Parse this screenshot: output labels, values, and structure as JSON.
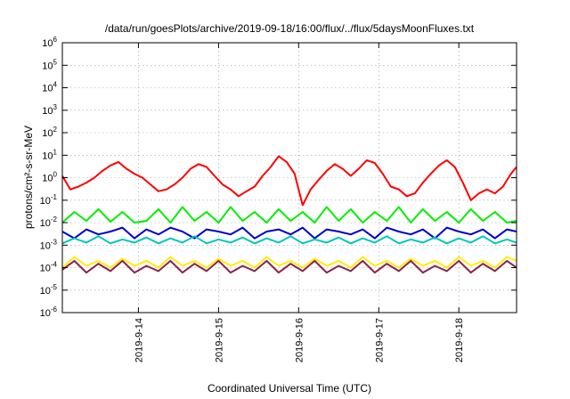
{
  "chart_data": {
    "type": "line",
    "title": "/data/run/goesPlots/archive/2019-09-18/16:00/flux/../flux/5daysMoonFluxes.txt",
    "xlabel": "Coordinated Universal Time (UTC)",
    "ylabel": "protons/cm²-s-sr-MeV",
    "y_scale": "log",
    "ylim": [
      1e-06,
      1000000.0
    ],
    "xlim": [
      13.05,
      18.72
    ],
    "x_unit": "day of September 2019",
    "x_ticks": [
      {
        "value": 14,
        "label": "2019-9-14"
      },
      {
        "value": 15,
        "label": "2019-9-15"
      },
      {
        "value": 16,
        "label": "2019-9-16"
      },
      {
        "value": 17,
        "label": "2019-9-17"
      },
      {
        "value": 18,
        "label": "2019-9-18"
      }
    ],
    "y_ticks": [
      {
        "value": 1e-06,
        "base": "10",
        "exp": "-6"
      },
      {
        "value": 1e-05,
        "base": "10",
        "exp": "-5"
      },
      {
        "value": 0.0001,
        "base": "10",
        "exp": "-4"
      },
      {
        "value": 0.001,
        "base": "10",
        "exp": "-3"
      },
      {
        "value": 0.01,
        "base": "10",
        "exp": "-2"
      },
      {
        "value": 0.1,
        "base": "10",
        "exp": "-1"
      },
      {
        "value": 1,
        "base": "10",
        "exp": "0"
      },
      {
        "value": 10,
        "base": "10",
        "exp": "1"
      },
      {
        "value": 100,
        "base": "10",
        "exp": "2"
      },
      {
        "value": 1000,
        "base": "10",
        "exp": "3"
      },
      {
        "value": 10000,
        "base": "10",
        "exp": "4"
      },
      {
        "value": 100000,
        "base": "10",
        "exp": "5"
      },
      {
        "value": 1000000,
        "base": "10",
        "exp": "6"
      }
    ],
    "grid": true,
    "legend": "none",
    "series": [
      {
        "color": "#ff0000",
        "x": [
          13.05,
          13.15,
          13.25,
          13.35,
          13.45,
          13.55,
          13.65,
          13.75,
          13.85,
          13.95,
          14.05,
          14.15,
          14.25,
          14.35,
          14.45,
          14.55,
          14.65,
          14.75,
          14.85,
          14.95,
          15.05,
          15.15,
          15.25,
          15.35,
          15.45,
          15.55,
          15.65,
          15.75,
          15.85,
          15.95,
          16.05,
          16.15,
          16.25,
          16.35,
          16.45,
          16.55,
          16.65,
          16.75,
          16.85,
          16.95,
          17.05,
          17.15,
          17.25,
          17.35,
          17.45,
          17.55,
          17.65,
          17.75,
          17.85,
          17.95,
          18.05,
          18.15,
          18.25,
          18.35,
          18.45,
          18.55,
          18.65,
          18.72
        ],
        "y": [
          1.2,
          0.3,
          0.4,
          0.6,
          1.0,
          2.0,
          3.5,
          5.0,
          2.5,
          1.5,
          1.0,
          0.5,
          0.25,
          0.3,
          0.5,
          1.0,
          2.5,
          4.0,
          3.0,
          1.2,
          0.5,
          0.3,
          0.15,
          0.25,
          0.4,
          1.2,
          3.0,
          9.0,
          5.0,
          1.5,
          0.06,
          0.3,
          0.8,
          2.0,
          4.0,
          2.5,
          1.2,
          2.5,
          6.0,
          4.5,
          1.5,
          0.4,
          0.3,
          0.15,
          0.2,
          0.6,
          1.5,
          3.5,
          6.0,
          3.0,
          0.6,
          0.1,
          0.2,
          0.3,
          0.2,
          0.4,
          1.5,
          3.0
        ]
      },
      {
        "color": "#00ee00",
        "x": [
          13.05,
          13.2,
          13.35,
          13.5,
          13.65,
          13.8,
          13.95,
          14.1,
          14.25,
          14.4,
          14.55,
          14.7,
          14.85,
          15.0,
          15.15,
          15.3,
          15.45,
          15.6,
          15.75,
          15.9,
          16.05,
          16.2,
          16.35,
          16.5,
          16.65,
          16.8,
          16.95,
          17.1,
          17.25,
          17.4,
          17.55,
          17.7,
          17.85,
          18.0,
          18.15,
          18.3,
          18.45,
          18.6,
          18.72
        ],
        "y": [
          0.01,
          0.03,
          0.012,
          0.04,
          0.011,
          0.03,
          0.01,
          0.012,
          0.04,
          0.01,
          0.05,
          0.012,
          0.03,
          0.01,
          0.05,
          0.012,
          0.03,
          0.01,
          0.04,
          0.012,
          0.03,
          0.01,
          0.05,
          0.012,
          0.04,
          0.01,
          0.03,
          0.012,
          0.05,
          0.01,
          0.04,
          0.012,
          0.03,
          0.01,
          0.04,
          0.012,
          0.03,
          0.01,
          0.012
        ]
      },
      {
        "color": "#0000cc",
        "x": [
          13.05,
          13.2,
          13.35,
          13.5,
          13.65,
          13.8,
          13.95,
          14.1,
          14.25,
          14.4,
          14.55,
          14.7,
          14.85,
          15.0,
          15.15,
          15.3,
          15.45,
          15.6,
          15.75,
          15.9,
          16.05,
          16.2,
          16.35,
          16.5,
          16.65,
          16.8,
          16.95,
          17.1,
          17.25,
          17.4,
          17.55,
          17.7,
          17.85,
          18.0,
          18.15,
          18.3,
          18.45,
          18.6,
          18.72
        ],
        "y": [
          0.004,
          0.002,
          0.005,
          0.003,
          0.004,
          0.006,
          0.002,
          0.005,
          0.003,
          0.006,
          0.004,
          0.002,
          0.005,
          0.004,
          0.003,
          0.006,
          0.002,
          0.004,
          0.005,
          0.003,
          0.006,
          0.002,
          0.005,
          0.004,
          0.003,
          0.005,
          0.002,
          0.006,
          0.004,
          0.003,
          0.005,
          0.002,
          0.006,
          0.004,
          0.003,
          0.005,
          0.002,
          0.005,
          0.004
        ]
      },
      {
        "color": "#00c8b4",
        "x": [
          13.05,
          13.2,
          13.35,
          13.5,
          13.65,
          13.8,
          13.95,
          14.1,
          14.25,
          14.4,
          14.55,
          14.7,
          14.85,
          15.0,
          15.15,
          15.3,
          15.45,
          15.6,
          15.75,
          15.9,
          16.05,
          16.2,
          16.35,
          16.5,
          16.65,
          16.8,
          16.95,
          17.1,
          17.25,
          17.4,
          17.55,
          17.7,
          17.85,
          18.0,
          18.15,
          18.3,
          18.45,
          18.6,
          18.72
        ],
        "y": [
          0.0012,
          0.002,
          0.0013,
          0.0025,
          0.0012,
          0.0018,
          0.0013,
          0.0022,
          0.0012,
          0.002,
          0.0013,
          0.0025,
          0.0012,
          0.0018,
          0.0013,
          0.0022,
          0.0012,
          0.002,
          0.0013,
          0.0025,
          0.0012,
          0.0018,
          0.0013,
          0.0022,
          0.0012,
          0.002,
          0.0013,
          0.0025,
          0.0012,
          0.0018,
          0.0013,
          0.0022,
          0.0012,
          0.002,
          0.0013,
          0.0025,
          0.0012,
          0.0018,
          0.0013
        ]
      },
      {
        "color": "#ffee00",
        "x": [
          13.05,
          13.2,
          13.35,
          13.5,
          13.65,
          13.8,
          13.95,
          14.1,
          14.25,
          14.4,
          14.55,
          14.7,
          14.85,
          15.0,
          15.15,
          15.3,
          15.45,
          15.6,
          15.75,
          15.9,
          16.05,
          16.2,
          16.35,
          16.5,
          16.65,
          16.8,
          16.95,
          17.1,
          17.25,
          17.4,
          17.55,
          17.7,
          17.85,
          18.0,
          18.15,
          18.3,
          18.45,
          18.6,
          18.72
        ],
        "y": [
          0.0001,
          0.0003,
          0.00012,
          0.0002,
          0.0001,
          0.00025,
          0.00012,
          0.0002,
          0.0001,
          0.0003,
          0.00012,
          0.0002,
          0.0001,
          0.00025,
          0.00012,
          0.0002,
          0.0001,
          0.0003,
          0.00012,
          0.0002,
          0.0001,
          0.00025,
          0.00012,
          0.0002,
          0.0001,
          0.0003,
          0.00012,
          0.0002,
          0.0001,
          0.00025,
          0.00012,
          0.0002,
          0.0001,
          0.0003,
          0.00012,
          0.0002,
          0.0001,
          0.0003,
          0.0002
        ]
      },
      {
        "color": "#8b2252",
        "x": [
          13.05,
          13.2,
          13.35,
          13.5,
          13.65,
          13.8,
          13.95,
          14.1,
          14.25,
          14.4,
          14.55,
          14.7,
          14.85,
          15.0,
          15.15,
          15.3,
          15.45,
          15.6,
          15.75,
          15.9,
          16.05,
          16.2,
          16.35,
          16.5,
          16.65,
          16.8,
          16.95,
          17.1,
          17.25,
          17.4,
          17.55,
          17.7,
          17.85,
          18.0,
          18.15,
          18.3,
          18.45,
          18.6,
          18.72
        ],
        "y": [
          8e-05,
          0.0002,
          6e-05,
          0.00015,
          7e-05,
          0.0002,
          6e-05,
          0.00012,
          7e-05,
          0.0002,
          6e-05,
          0.00015,
          7e-05,
          0.0002,
          6e-05,
          0.00012,
          7e-05,
          0.0002,
          6e-05,
          0.00015,
          7e-05,
          0.0002,
          6e-05,
          0.00012,
          7e-05,
          0.0002,
          6e-05,
          0.00015,
          7e-05,
          0.0002,
          6e-05,
          0.00012,
          7e-05,
          0.0002,
          6e-05,
          0.00015,
          7e-05,
          0.0002,
          0.0001
        ]
      }
    ]
  }
}
